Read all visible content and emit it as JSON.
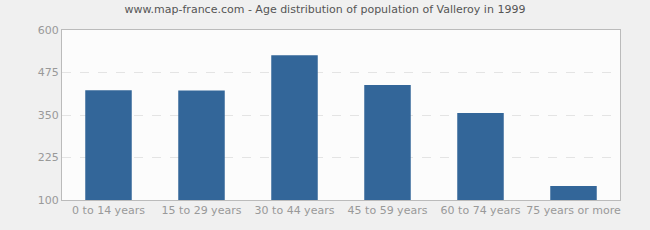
{
  "chart_data": {
    "type": "bar",
    "title": "www.map-france.com - Age distribution of population of Valleroy in 1999",
    "categories": [
      "0 to 14 years",
      "15 to 29 years",
      "30 to 44 years",
      "45 to 59 years",
      "60 to 74 years",
      "75 years or more"
    ],
    "values": [
      423,
      422,
      526,
      438,
      356,
      141
    ],
    "color": "#336699",
    "ylim": [
      100,
      600
    ],
    "yticks": [
      100,
      225,
      350,
      475,
      600
    ],
    "grid": true
  }
}
